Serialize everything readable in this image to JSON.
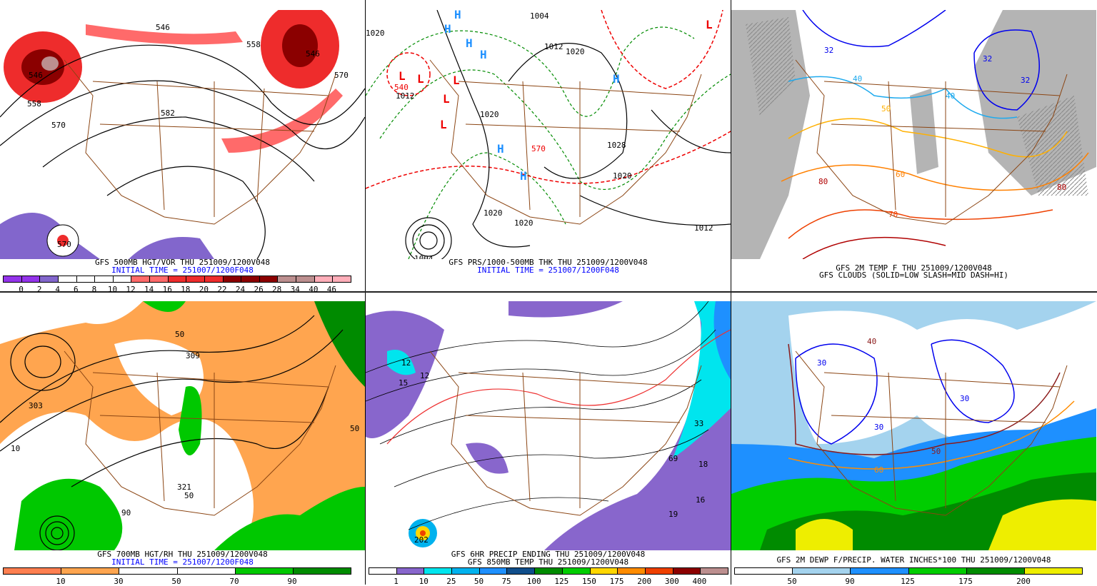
{
  "panels": [
    {
      "id": "p1",
      "caption1": "GFS 500MB HGT/VOR THU 251009/1200V048",
      "caption2": "INITIAL TIME = 251007/1200F048",
      "colorbar": {
        "colors": [
          "#9333ea",
          "#9333ea",
          "#8266cc",
          "#ffffff",
          "#ffffff",
          "#ffffff",
          "#ffffff",
          "#ff6a6a",
          "#ff6a6a",
          "#ee2c2c",
          "#ee2c2c",
          "#ee2c2c",
          "#8b0000",
          "#8b0000",
          "#8b0000",
          "#bc8f8f",
          "#bc8f8f",
          "#ffaeb9",
          "#ffaeb9"
        ],
        "labels": [
          "0",
          "2",
          "4",
          "6",
          "8",
          "10",
          "12",
          "14",
          "16",
          "18",
          "20",
          "22",
          "24",
          "26",
          "28",
          "34",
          "40",
          "46"
        ]
      },
      "labels": [
        "546",
        "558",
        "570",
        "582",
        "546",
        "558",
        "570",
        "546",
        "570"
      ]
    },
    {
      "id": "p2",
      "caption1": "GFS PRS/1000-500MB THK THU 251009/1200V048",
      "caption2": "INITIAL TIME = 251007/1200F048",
      "labels": [
        "1020",
        "1012",
        "1004",
        "1012",
        "1020",
        "1020",
        "1028",
        "1020",
        "1020",
        "1020",
        "1012",
        "1004",
        "540",
        "570"
      ],
      "highs": [
        "H",
        "H",
        "H",
        "H",
        "H",
        "H",
        "H"
      ],
      "lows": [
        "L",
        "L",
        "L",
        "L",
        "L",
        "L"
      ]
    },
    {
      "id": "p3",
      "caption1": "GFS 2M TEMP F THU 251009/1200V048",
      "caption2": "GFS CLOUDS (SOLID=LOW SLASH=MID DASH=HI)",
      "labels": [
        "32",
        "32",
        "40",
        "40",
        "50",
        "60",
        "70",
        "80",
        "80",
        "32"
      ]
    },
    {
      "id": "p4",
      "caption1": "GFS 700MB HGT/RH THU 251009/1200V048",
      "caption2": "INITIAL TIME = 251007/1200F048",
      "colorbar": {
        "colors": [
          "#ff7f50",
          "#ffa54f",
          "#ffffff",
          "#ffffff",
          "#00c800",
          "#008b00"
        ],
        "labels": [
          "10",
          "30",
          "50",
          "70",
          "90"
        ]
      },
      "labels": [
        "303",
        "309",
        "10",
        "50",
        "90",
        "321",
        "50",
        "50"
      ]
    },
    {
      "id": "p5",
      "caption1": "GFS 6HR PRECIP ENDING THU 251009/1200V048",
      "caption2": "GFS 850MB TEMP THU 251009/1200V048",
      "colorbar": {
        "colors": [
          "#ffffff",
          "#8866cc",
          "#00e5ee",
          "#00b2ee",
          "#1e90ff",
          "#104e8b",
          "#008b00",
          "#00cd00",
          "#ffd700",
          "#ff8c00",
          "#ee4000",
          "#8b0000",
          "#bc8f8f"
        ],
        "labels": [
          "1",
          "10",
          "25",
          "50",
          "75",
          "100",
          "125",
          "150",
          "175",
          "200",
          "300",
          "400"
        ]
      },
      "labels": [
        "12",
        "15",
        "12",
        "33",
        "69",
        "18",
        "19",
        "16",
        "202"
      ]
    },
    {
      "id": "p6",
      "caption1": "GFS 2M DEWP F/PRECIP. WATER INCHES*100 THU 251009/1200V048",
      "caption2": "",
      "colorbar": {
        "colors": [
          "#ffffff",
          "#a4d3ee",
          "#1e90ff",
          "#00cd00",
          "#008b00",
          "#eeee00"
        ],
        "labels": [
          "50",
          "90",
          "125",
          "175",
          "200"
        ]
      },
      "labels": [
        "30",
        "30",
        "40",
        "50",
        "60",
        "30"
      ]
    }
  ],
  "colors": {
    "state_lines": "#8b4513",
    "caption_blue": "#0000ff"
  }
}
